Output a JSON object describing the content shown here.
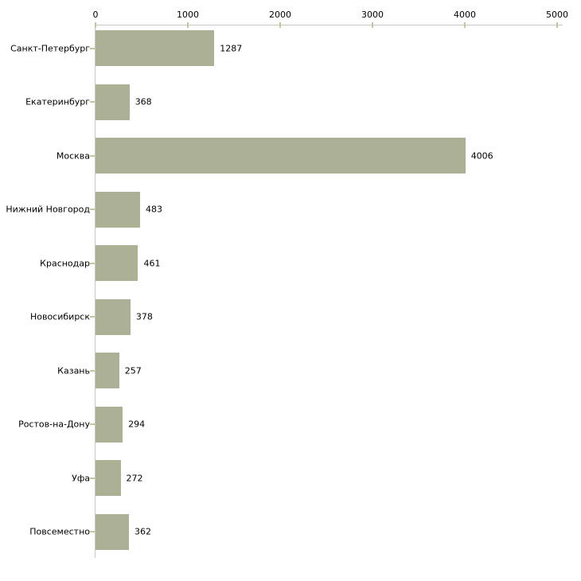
{
  "chart_data": {
    "type": "bar",
    "orientation": "horizontal",
    "title": "",
    "xlabel": "",
    "ylabel": "",
    "categories": [
      "Санкт-Петербург",
      "Екатеринбург",
      "Москва",
      "Нижний Новгород",
      "Краснодар",
      "Новосибирск",
      "Казань",
      "Ростов-на-Дону",
      "Уфа",
      "Повсеместно"
    ],
    "values": [
      1287,
      368,
      4006,
      483,
      461,
      378,
      257,
      294,
      272,
      362
    ],
    "xlim": [
      0,
      5000
    ],
    "x_ticks": [
      0,
      1000,
      2000,
      3000,
      4000,
      5000
    ],
    "grid": false,
    "legend": null,
    "colors": {
      "bar_fill": "#acb195",
      "axis_line": "#c8c8c8",
      "tick_mark": "#c3c795",
      "label_text": "#000000",
      "background": "#ffffff"
    }
  }
}
